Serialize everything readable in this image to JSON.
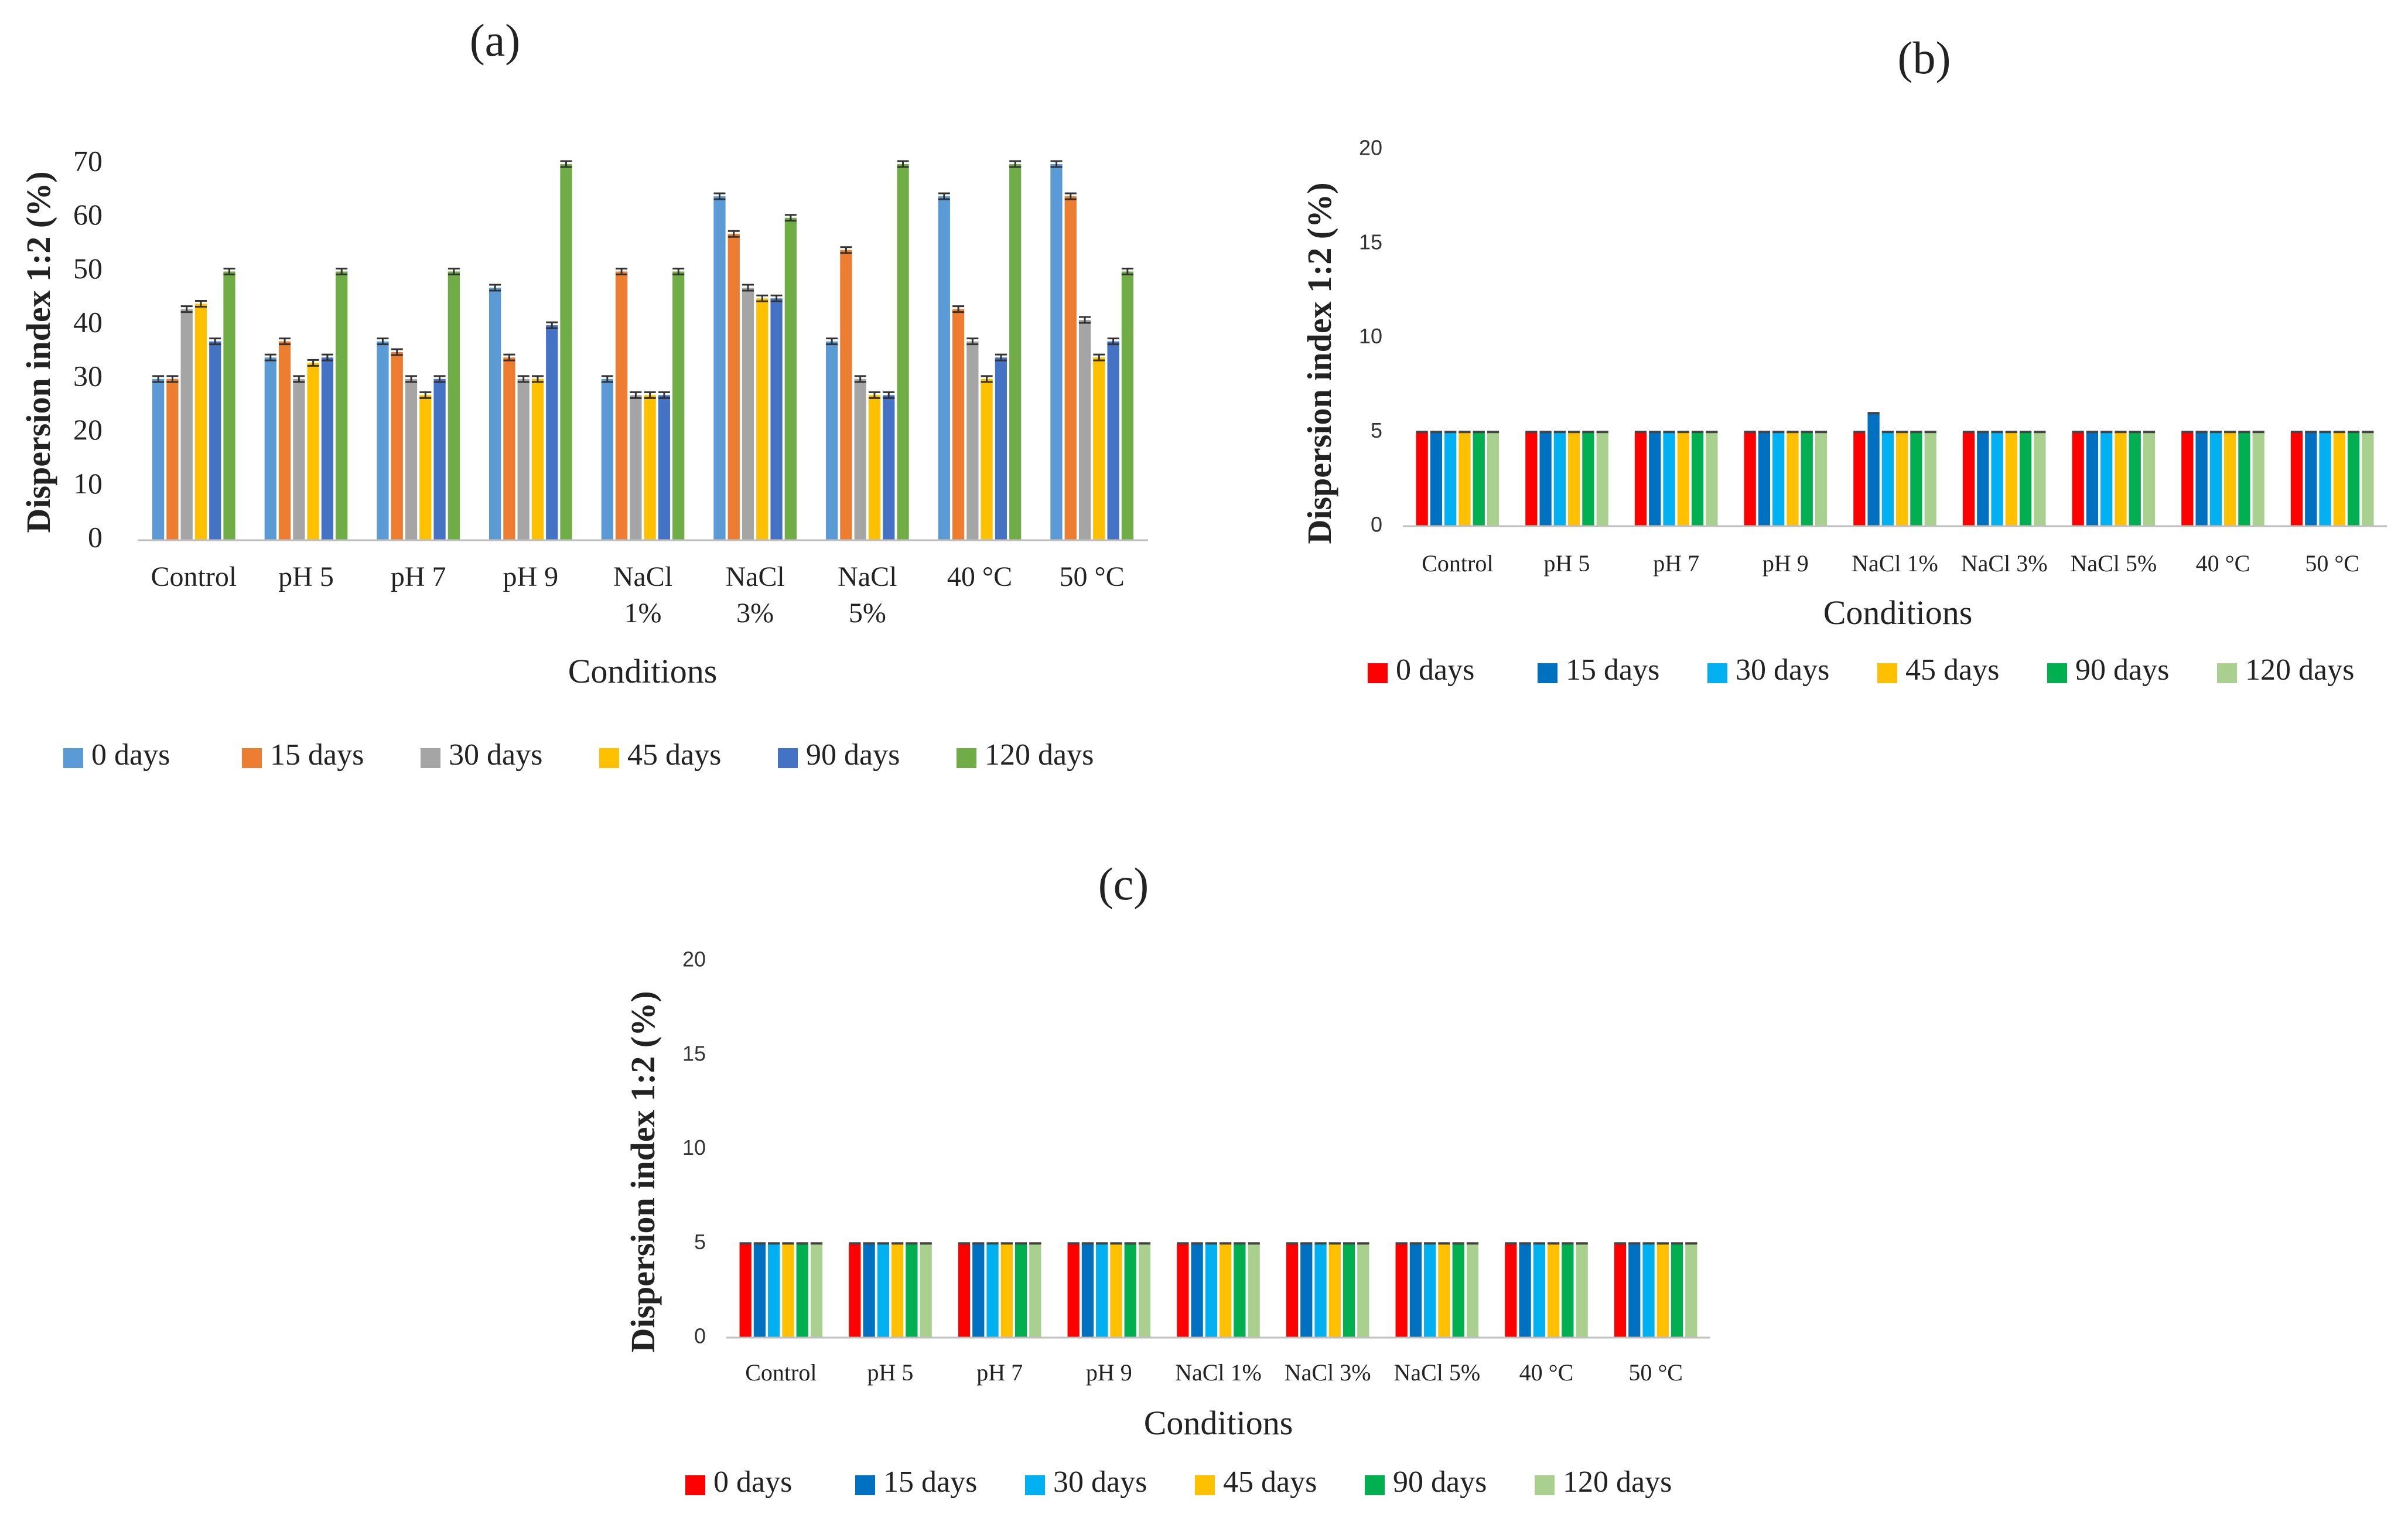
{
  "chart_data": [
    {
      "panel": "(a)",
      "type": "bar",
      "title": "(a)",
      "xlabel": "Conditions",
      "ylabel": "Dispersion index 1:2 (%)",
      "ylim": [
        0,
        70
      ],
      "yticks": [
        0,
        10,
        20,
        30,
        40,
        50,
        60,
        70
      ],
      "categories": [
        "Control",
        "pH 5",
        "pH 7",
        "pH 9",
        "NaCl 1%",
        "NaCl 3%",
        "NaCl 5%",
        "40 °C",
        "50 °C"
      ],
      "series": [
        {
          "name": "0 days",
          "color": "#5B9BD5",
          "values": [
            30,
            34,
            37,
            47,
            30,
            64,
            37,
            64,
            70
          ]
        },
        {
          "name": "15 days",
          "color": "#ED7D31",
          "values": [
            30,
            37,
            35,
            34,
            50,
            57,
            54,
            43,
            64
          ]
        },
        {
          "name": "30 days",
          "color": "#A5A5A5",
          "values": [
            43,
            30,
            30,
            30,
            27,
            47,
            30,
            37,
            41
          ]
        },
        {
          "name": "45 days",
          "color": "#FFC000",
          "values": [
            44,
            33,
            27,
            30,
            27,
            45,
            27,
            30,
            34
          ]
        },
        {
          "name": "90 days",
          "color": "#4472C4",
          "values": [
            37,
            34,
            30,
            40,
            27,
            45,
            27,
            34,
            37
          ]
        },
        {
          "name": "120 days",
          "color": "#70AD47",
          "values": [
            50,
            50,
            50,
            70,
            50,
            60,
            70,
            70,
            50
          ]
        }
      ],
      "legend": "bottom"
    },
    {
      "panel": "(b)",
      "type": "bar",
      "title": "(b)",
      "xlabel": "Conditions",
      "ylabel": "Dispersion   index 1:2 (%)",
      "ylim": [
        0,
        20
      ],
      "yticks": [
        0,
        5,
        10,
        15,
        20
      ],
      "categories": [
        "Control",
        "pH 5",
        "pH 7",
        "pH 9",
        "NaCl 1%",
        "NaCl 3%",
        "NaCl 5%",
        "40 °C",
        "50 °C"
      ],
      "series": [
        {
          "name": "0 days",
          "color": "#FF0000",
          "values": [
            5,
            5,
            5,
            5,
            5,
            5,
            5,
            5,
            5
          ]
        },
        {
          "name": "15 days",
          "color": "#0070C0",
          "values": [
            5,
            5,
            5,
            5,
            6,
            5,
            5,
            5,
            5
          ]
        },
        {
          "name": "30 days",
          "color": "#00B0F0",
          "values": [
            5,
            5,
            5,
            5,
            5,
            5,
            5,
            5,
            5
          ]
        },
        {
          "name": "45 days",
          "color": "#FFC000",
          "values": [
            5,
            5,
            5,
            5,
            5,
            5,
            5,
            5,
            5
          ]
        },
        {
          "name": "90 days",
          "color": "#00B050",
          "values": [
            5,
            5,
            5,
            5,
            5,
            5,
            5,
            5,
            5
          ]
        },
        {
          "name": "120 days",
          "color": "#A9D08E",
          "values": [
            5,
            5,
            5,
            5,
            5,
            5,
            5,
            5,
            5
          ]
        }
      ],
      "legend": "bottom"
    },
    {
      "panel": "(c)",
      "type": "bar",
      "title": "(c)",
      "xlabel": "Conditions",
      "ylabel": "Dispersion   index 1:2 (%)",
      "ylim": [
        0,
        20
      ],
      "yticks": [
        0,
        5,
        10,
        15,
        20
      ],
      "categories": [
        "Control",
        "pH 5",
        "pH 7",
        "pH 9",
        "NaCl 1%",
        "NaCl 3%",
        "NaCl 5%",
        "40 °C",
        "50 °C"
      ],
      "series": [
        {
          "name": "0 days",
          "color": "#FF0000",
          "values": [
            5,
            5,
            5,
            5,
            5,
            5,
            5,
            5,
            5
          ]
        },
        {
          "name": "15 days",
          "color": "#0070C0",
          "values": [
            5,
            5,
            5,
            5,
            5,
            5,
            5,
            5,
            5
          ]
        },
        {
          "name": "30 days",
          "color": "#00B0F0",
          "values": [
            5,
            5,
            5,
            5,
            5,
            5,
            5,
            5,
            5
          ]
        },
        {
          "name": "45 days",
          "color": "#FFC000",
          "values": [
            5,
            5,
            5,
            5,
            5,
            5,
            5,
            5,
            5
          ]
        },
        {
          "name": "90 days",
          "color": "#00B050",
          "values": [
            5,
            5,
            5,
            5,
            5,
            5,
            5,
            5,
            5
          ]
        },
        {
          "name": "120 days",
          "color": "#A9D08E",
          "values": [
            5,
            5,
            5,
            5,
            5,
            5,
            5,
            5,
            5
          ]
        }
      ],
      "legend": "bottom"
    }
  ]
}
